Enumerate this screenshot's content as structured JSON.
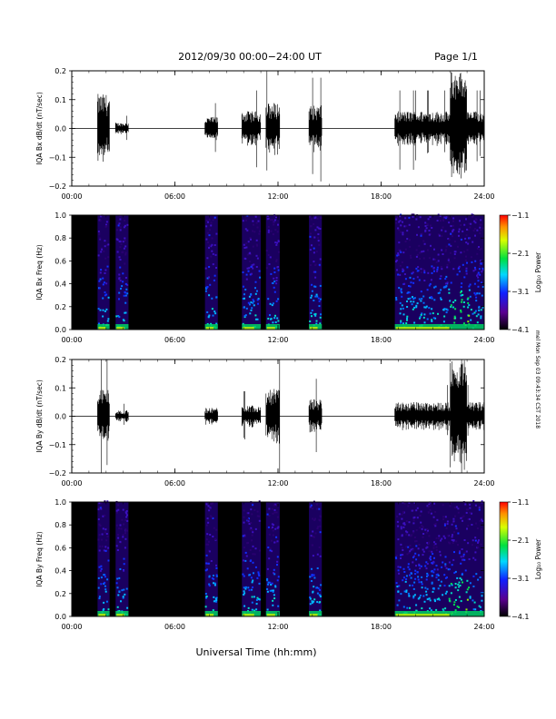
{
  "header": {
    "title": "2012/09/30  00:00−24:00 UT",
    "page": "Page 1/1"
  },
  "xlabel": "Universal Time (hh:mm)",
  "side_note": "mel Mon Sep 03 09:43:34 CST 2018",
  "colors": {
    "background": "#ffffff",
    "spectrogram_bg": "#000000",
    "trace": "#000000"
  },
  "chart_data": [
    {
      "type": "line",
      "ylabel": "IQA Bx dB/dt (nT/sec)",
      "xlim": [
        0,
        24
      ],
      "ylim": [
        -0.2,
        0.2
      ],
      "xticks": [
        "00:00",
        "06:00",
        "12:00",
        "18:00",
        "24:00"
      ],
      "yticks": [
        "0.2",
        "0.1",
        "0.0",
        "−0.1",
        "−0.2"
      ],
      "data_intervals_hours": [
        [
          1.5,
          2.2
        ],
        [
          2.55,
          3.3
        ],
        [
          7.75,
          8.5
        ],
        [
          9.9,
          11.0
        ],
        [
          11.3,
          12.1
        ],
        [
          13.8,
          14.55
        ],
        [
          18.8,
          24.0
        ]
      ],
      "envelope_amplitude": [
        0.12,
        0.02,
        0.04,
        0.06,
        0.09,
        0.08,
        0.06
      ],
      "peak_near_hours": 22.5,
      "peak_amplitude": 0.2
    },
    {
      "type": "heatmap",
      "ylabel": "IQA Bx Freq (Hz)",
      "xlim": [
        0,
        24
      ],
      "ylim": [
        0,
        1.0
      ],
      "xticks": [
        "00:00",
        "06:00",
        "12:00",
        "18:00",
        "24:00"
      ],
      "yticks": [
        "1.0",
        "0.8",
        "0.6",
        "0.4",
        "0.2",
        "0.0"
      ],
      "colorbar": {
        "label": "Log₁₀ Power",
        "ticks": [
          "−1.1",
          "−2.1",
          "−3.1",
          "−4.1"
        ],
        "range": [
          -4.1,
          -1.1
        ]
      },
      "data_intervals_hours": [
        [
          1.5,
          2.2
        ],
        [
          2.55,
          3.3
        ],
        [
          7.75,
          8.5
        ],
        [
          9.9,
          11.0
        ],
        [
          11.3,
          12.1
        ],
        [
          13.8,
          14.55
        ],
        [
          18.8,
          24.0
        ]
      ]
    },
    {
      "type": "line",
      "ylabel": "IQA By dB/dt (nT/sec)",
      "xlim": [
        0,
        24
      ],
      "ylim": [
        -0.2,
        0.2
      ],
      "xticks": [
        "00:00",
        "06:00",
        "12:00",
        "18:00",
        "24:00"
      ],
      "yticks": [
        "0.2",
        "0.1",
        "0.0",
        "−0.1",
        "−0.2"
      ],
      "data_intervals_hours": [
        [
          1.5,
          2.2
        ],
        [
          2.55,
          3.3
        ],
        [
          7.75,
          8.5
        ],
        [
          9.9,
          11.0
        ],
        [
          11.3,
          12.1
        ],
        [
          13.8,
          14.55
        ],
        [
          18.8,
          24.0
        ]
      ],
      "envelope_amplitude": [
        0.1,
        0.02,
        0.03,
        0.04,
        0.1,
        0.06,
        0.05
      ],
      "peak_near_hours": 22.5,
      "peak_amplitude": 0.2
    },
    {
      "type": "heatmap",
      "ylabel": "IQA By Freq (Hz)",
      "xlim": [
        0,
        24
      ],
      "ylim": [
        0,
        1.0
      ],
      "xticks": [
        "00:00",
        "06:00",
        "12:00",
        "18:00",
        "24:00"
      ],
      "yticks": [
        "1.0",
        "0.8",
        "0.6",
        "0.4",
        "0.2",
        "0.0"
      ],
      "colorbar": {
        "label": "Log₁₀ Power",
        "ticks": [
          "−1.1",
          "−2.1",
          "−3.1",
          "−4.1"
        ],
        "range": [
          -4.1,
          -1.1
        ]
      },
      "data_intervals_hours": [
        [
          1.5,
          2.2
        ],
        [
          2.55,
          3.3
        ],
        [
          7.75,
          8.5
        ],
        [
          9.9,
          11.0
        ],
        [
          11.3,
          12.1
        ],
        [
          13.8,
          14.55
        ],
        [
          18.8,
          24.0
        ]
      ]
    }
  ]
}
